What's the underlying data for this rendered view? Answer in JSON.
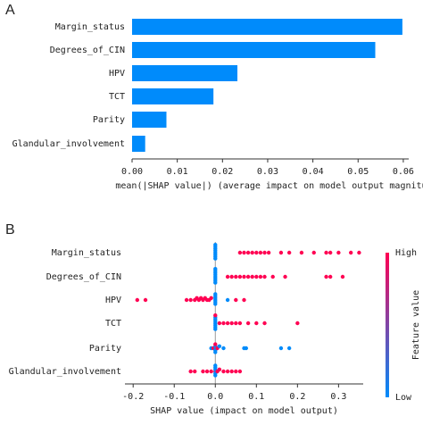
{
  "chart_data": [
    {
      "type": "bar",
      "orientation": "horizontal",
      "panel_label": "A",
      "categories": [
        "Margin_status",
        "Degrees_of_CIN",
        "HPV",
        "TCT",
        "Parity",
        "Glandular_involvement"
      ],
      "values": [
        0.0598,
        0.0538,
        0.0233,
        0.018,
        0.0076,
        0.0029
      ],
      "color": "#008bfb",
      "xlabel": "mean(|SHAP value|) (average impact on model output magnitude)",
      "xlim": [
        0,
        0.0612
      ],
      "xticks": [
        {
          "value": 0,
          "label": "0.00"
        },
        {
          "value": 0.01,
          "label": "0.01"
        },
        {
          "value": 0.02,
          "label": "0.02"
        },
        {
          "value": 0.03,
          "label": "0.03"
        },
        {
          "value": 0.04,
          "label": "0.04"
        },
        {
          "value": 0.05,
          "label": "0.05"
        },
        {
          "value": 0.06,
          "label": "0.06"
        }
      ]
    },
    {
      "type": "beeswarm",
      "panel_label": "B",
      "xlabel": "SHAP value (impact on model output)",
      "xlim": [
        -0.22,
        0.36
      ],
      "xticks": [
        -0.2,
        -0.1,
        {
          "value": 0,
          "label": "0.0"
        },
        0.1,
        0.2,
        0.3
      ],
      "series": [
        {
          "name": "Margin_status",
          "values": [
            0,
            0,
            0,
            0,
            0,
            0,
            0,
            0,
            0.06,
            0.07,
            0.08,
            0.09,
            0.1,
            0.11,
            0.12,
            0.13,
            0.16,
            0.18,
            0.21,
            0.24,
            0.27,
            0.28,
            0.3,
            0.33,
            0.35
          ],
          "colors": [
            "#008bfb",
            "#008bfb",
            "#008bfb",
            "#008bfb",
            "#008bfb",
            "#008bfb",
            "#008bfb",
            "#008bfb",
            "#ff0052",
            "#ff0052",
            "#ff0052",
            "#ff0052",
            "#ff0052",
            "#ff0052",
            "#ff0052",
            "#ff0052",
            "#ff0052",
            "#ff0052",
            "#ff0052",
            "#ff0052",
            "#ff0052",
            "#ff0052",
            "#ff0052",
            "#ff0052",
            "#ff0052"
          ]
        },
        {
          "name": "Degrees_of_CIN",
          "values": [
            0,
            0,
            0,
            0,
            0,
            0,
            0,
            0,
            0.03,
            0.04,
            0.05,
            0.06,
            0.07,
            0.08,
            0.09,
            0.1,
            0.11,
            0.12,
            0.14,
            0.17,
            0.27,
            0.28,
            0.31
          ],
          "colors": [
            "#008bfb",
            "#008bfb",
            "#008bfb",
            "#008bfb",
            "#008bfb",
            "#008bfb",
            "#008bfb",
            "#008bfb",
            "#ff0052",
            "#ff0052",
            "#ff0052",
            "#ff0052",
            "#ff0052",
            "#ff0052",
            "#ff0052",
            "#ff0052",
            "#ff0052",
            "#ff0052",
            "#ff0052",
            "#ff0052",
            "#ff0052",
            "#ff0052",
            "#ff0052"
          ]
        },
        {
          "name": "HPV",
          "values": [
            -0.19,
            -0.17,
            -0.07,
            -0.06,
            -0.05,
            -0.045,
            -0.04,
            -0.035,
            -0.03,
            -0.025,
            -0.02,
            -0.015,
            -0.01,
            0,
            0,
            0,
            0,
            0,
            0,
            0.03,
            0.05,
            0.07
          ],
          "colors": [
            "#ff0052",
            "#ff0052",
            "#ff0052",
            "#ff0052",
            "#ff0052",
            "#ff0052",
            "#ff0052",
            "#ff0052",
            "#ff0052",
            "#ff0052",
            "#ff0052",
            "#ff0052",
            "#ff0052",
            "#008bfb",
            "#008bfb",
            "#008bfb",
            "#008bfb",
            "#008bfb",
            "#008bfb",
            "#008bfb",
            "#ff0052",
            "#ff0052"
          ]
        },
        {
          "name": "TCT",
          "values": [
            0,
            0,
            0,
            0,
            0,
            0,
            0,
            0,
            0.01,
            0.02,
            0.03,
            0.04,
            0.05,
            0.06,
            0.08,
            0.1,
            0.12,
            0.2
          ],
          "colors": [
            "#008bfb",
            "#008bfb",
            "#008bfb",
            "#008bfb",
            "#008bfb",
            "#008bfb",
            "#008bfb",
            "#ff0052",
            "#ff0052",
            "#ff0052",
            "#ff0052",
            "#ff0052",
            "#ff0052",
            "#ff0052",
            "#ff0052",
            "#ff0052",
            "#ff0052",
            "#ff0052"
          ]
        },
        {
          "name": "Parity",
          "values": [
            -0.01,
            -0.005,
            0,
            0,
            0,
            0,
            0.005,
            0.01,
            0.02,
            0.07,
            0.075,
            0.16,
            0.18
          ],
          "colors": [
            "#008bfb",
            "#ff0052",
            "#008bfb",
            "#008bfb",
            "#ff0052",
            "#008bfb",
            "#ff0052",
            "#008bfb",
            "#008bfb",
            "#008bfb",
            "#008bfb",
            "#008bfb",
            "#008bfb"
          ]
        },
        {
          "name": "Glandular_involvement",
          "values": [
            -0.06,
            -0.05,
            -0.03,
            -0.02,
            -0.01,
            0,
            0,
            0,
            0,
            0,
            0,
            0.005,
            0.01,
            0.02,
            0.03,
            0.04,
            0.05,
            0.06
          ],
          "colors": [
            "#ff0052",
            "#ff0052",
            "#ff0052",
            "#ff0052",
            "#ff0052",
            "#ff0052",
            "#008bfb",
            "#008bfb",
            "#008bfb",
            "#008bfb",
            "#008bfb",
            "#ff0052",
            "#ff0052",
            "#ff0052",
            "#ff0052",
            "#ff0052",
            "#ff0052",
            "#ff0052"
          ]
        }
      ],
      "colorbar": {
        "label": "Feature value",
        "high": "High",
        "low": "Low",
        "colors": [
          "#008bfb",
          "#ff0052"
        ]
      }
    }
  ]
}
